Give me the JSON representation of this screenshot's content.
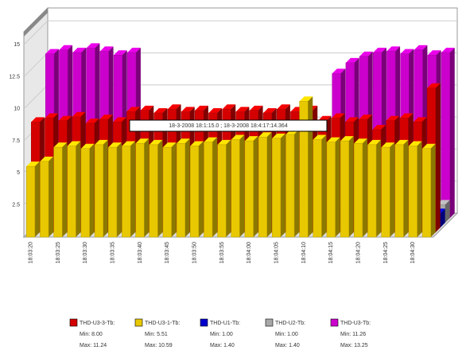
{
  "chart_data": {
    "type": "bar3d",
    "annotation": "18-3-2008 18:1:15.0 ; 18-3-2008 18:4:17:14.364",
    "categories": [
      "18:03:20",
      null,
      "18:03:25",
      null,
      "18:03:30",
      null,
      "18:03:35",
      null,
      "18:03:40",
      null,
      "18:03:45",
      null,
      "18:03:50",
      null,
      "18:03:55",
      null,
      "18:04:00",
      null,
      "18:04:05",
      null,
      "18:04:10",
      null,
      "18:04:15",
      null,
      "18:04:20",
      null,
      "18:04:25",
      null,
      "18:04:30",
      null
    ],
    "ylim": [
      0,
      16
    ],
    "yticks": [
      2.5,
      5,
      7.5,
      10,
      12.5,
      15
    ],
    "grid": true,
    "series": [
      {
        "name": "THD-U3-3-Tb:",
        "color": "#d40000",
        "stats": {
          "min": "Min: 8.00",
          "max": "Max: 11.24"
        },
        "values": [
          8.6,
          8.9,
          8.7,
          9.0,
          8.5,
          8.8,
          8.6,
          9.4,
          9.5,
          9.3,
          9.6,
          9.4,
          9.5,
          9.3,
          9.6,
          9.4,
          9.5,
          9.3,
          9.6,
          9.4,
          9.5,
          8.7,
          8.9,
          8.6,
          8.8,
          8.0,
          8.7,
          8.9,
          8.6,
          11.24
        ]
      },
      {
        "name": "THD-U3-1-Tb:",
        "color": "#e8c800",
        "stats": {
          "min": "Min: 5.51",
          "max": "Max: 10.59"
        },
        "values": [
          5.51,
          5.9,
          7.0,
          7.1,
          6.9,
          7.2,
          7.0,
          7.1,
          7.3,
          7.2,
          7.0,
          7.3,
          7.1,
          7.4,
          7.2,
          7.6,
          7.5,
          7.8,
          7.7,
          8.0,
          10.59,
          7.6,
          7.4,
          7.5,
          7.3,
          7.2,
          7.0,
          7.2,
          7.1,
          6.9
        ]
      },
      {
        "name": "THD-U1-Tb:",
        "color": "#0000cc",
        "stats": {
          "min": "Min: 1.00",
          "max": "Max: 1.40"
        },
        "values": [
          1.1,
          1.2,
          1.3,
          1.0,
          1.2,
          1.3,
          1.1,
          1.4,
          1.2,
          1.1,
          1.3,
          1.2,
          1.0,
          1.2,
          1.3,
          1.1,
          1.2,
          1.4,
          1.1,
          1.3,
          1.2,
          1.1,
          1.2,
          1.3,
          1.0,
          1.2,
          1.1,
          1.3,
          1.2,
          1.1
        ]
      },
      {
        "name": "THD-U2-Tb:",
        "color": "#a8a8a8",
        "stats": {
          "min": "Min: 1.00",
          "max": "Max: 1.40"
        },
        "values": [
          1.2,
          1.3,
          1.1,
          1.4,
          1.2,
          1.0,
          1.3,
          1.2,
          1.1,
          1.3,
          1.2,
          1.4,
          1.1,
          1.2,
          1.3,
          1.0,
          1.2,
          1.3,
          1.1,
          1.2,
          1.4,
          1.2,
          1.3,
          1.1,
          1.2,
          1.3,
          1.0,
          1.2,
          1.3,
          1.4
        ]
      },
      {
        "name": "THD-U3-Tb:",
        "color": "#cc00cc",
        "stats": {
          "min": "Min: 11.26",
          "max": "Max: 13.25"
        },
        "values": [
          12.8,
          13.1,
          12.9,
          13.25,
          13.0,
          12.7,
          12.9,
          null,
          null,
          null,
          null,
          null,
          null,
          null,
          null,
          null,
          null,
          null,
          null,
          null,
          null,
          11.26,
          12.1,
          12.6,
          12.9,
          13.0,
          12.8,
          13.1,
          12.7,
          12.9
        ]
      }
    ]
  }
}
